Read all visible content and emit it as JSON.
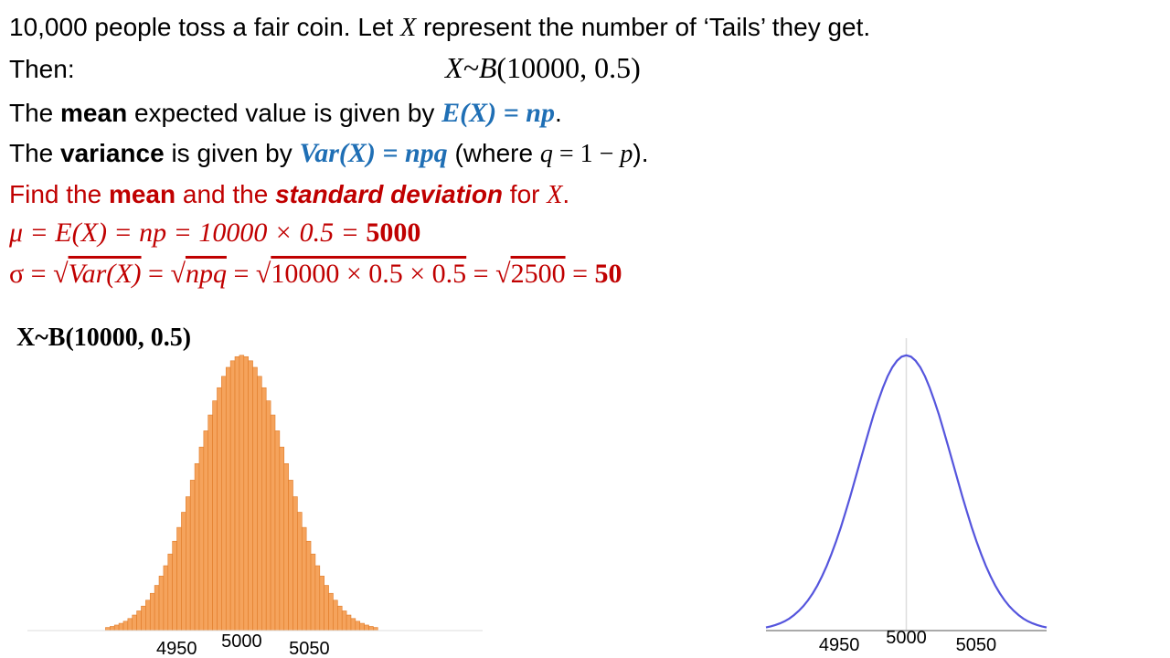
{
  "lines": [
    [
      "10,000 people toss a fair coin.  Let ",
      "X",
      " represent the number of ‘Tails’ they get."
    ],
    [
      "Then:",
      "X~B",
      "(10000, 0.5)"
    ],
    [
      "The ",
      "mean",
      " expected value is given by ",
      "E(X) = np",
      "."
    ],
    [
      "The ",
      "variance",
      " is given by ",
      "Var(X) = npq",
      "  (where ",
      "q",
      " = 1 − ",
      "p",
      ")."
    ],
    [
      "Find the ",
      "mean",
      " and the ",
      "standard deviation",
      " for ",
      "X",
      "."
    ],
    [
      "μ = E(X) = np = 10000 × 0.5 = ",
      "5000"
    ],
    [
      "σ = √",
      "Var(X)",
      " = √",
      "npq",
      " = √",
      "10000 × 0.5 × 0.5",
      " = √",
      "2500",
      " = ",
      "50"
    ]
  ],
  "chart_data": [
    {
      "type": "bar",
      "title": "X~B(10000, 0.5)",
      "color": "#f5a35c",
      "x": [
        4850,
        4855,
        4860,
        4865,
        4870,
        4875,
        4880,
        4885,
        4890,
        4895,
        4900,
        4905,
        4910,
        4915,
        4920,
        4925,
        4930,
        4935,
        4940,
        4945,
        4950,
        4955,
        4960,
        4965,
        4970,
        4975,
        4980,
        4985,
        4990,
        4995,
        5000,
        5005,
        5010,
        5015,
        5020,
        5025,
        5030,
        5035,
        5040,
        5045,
        5050,
        5055,
        5060,
        5065,
        5070,
        5075,
        5080,
        5085,
        5090,
        5095,
        5100,
        5105,
        5110,
        5115,
        5120,
        5125,
        5130,
        5135,
        5140,
        5145,
        5150
      ],
      "values": [
        9e-05,
        0.00012,
        0.00016,
        0.00021,
        0.00027,
        0.00035,
        0.00045,
        0.00057,
        0.00071,
        0.00088,
        0.00108,
        0.00131,
        0.00158,
        0.00188,
        0.00222,
        0.00259,
        0.00299,
        0.00343,
        0.00388,
        0.00436,
        0.00484,
        0.00532,
        0.00579,
        0.00625,
        0.00666,
        0.00704,
        0.00737,
        0.00763,
        0.00782,
        0.00794,
        0.00798,
        0.00794,
        0.00782,
        0.00763,
        0.00737,
        0.00704,
        0.00666,
        0.00625,
        0.00579,
        0.00532,
        0.00484,
        0.00436,
        0.00388,
        0.00343,
        0.00299,
        0.00259,
        0.00222,
        0.00188,
        0.00158,
        0.00131,
        0.00108,
        0.00088,
        0.00071,
        0.00057,
        0.00045,
        0.00035,
        0.00027,
        0.00021,
        0.00016,
        0.00012,
        9e-05
      ],
      "xlim": [
        4760,
        5270
      ],
      "ylim": [
        0,
        0.008
      ],
      "xticks": [
        4950,
        5000,
        5050
      ]
    },
    {
      "type": "line",
      "color": "#5555dd",
      "x": [
        4850,
        4855,
        4860,
        4865,
        4870,
        4875,
        4880,
        4885,
        4890,
        4895,
        4900,
        4905,
        4910,
        4915,
        4920,
        4925,
        4930,
        4935,
        4940,
        4945,
        4950,
        4955,
        4960,
        4965,
        4970,
        4975,
        4980,
        4985,
        4990,
        4995,
        5000,
        5005,
        5010,
        5015,
        5020,
        5025,
        5030,
        5035,
        5040,
        5045,
        5050,
        5055,
        5060,
        5065,
        5070,
        5075,
        5080,
        5085,
        5090,
        5095,
        5100,
        5105,
        5110,
        5115,
        5120,
        5125,
        5130,
        5135,
        5140,
        5145,
        5150
      ],
      "values": [
        9e-05,
        0.00012,
        0.00016,
        0.00021,
        0.00027,
        0.00035,
        0.00045,
        0.00057,
        0.00071,
        0.00088,
        0.00108,
        0.00131,
        0.00158,
        0.00188,
        0.00222,
        0.00259,
        0.00299,
        0.00343,
        0.00388,
        0.00436,
        0.00484,
        0.00532,
        0.00579,
        0.00625,
        0.00666,
        0.00704,
        0.00737,
        0.00763,
        0.00782,
        0.00794,
        0.00798,
        0.00794,
        0.00782,
        0.00763,
        0.00737,
        0.00704,
        0.00666,
        0.00625,
        0.00579,
        0.00532,
        0.00484,
        0.00436,
        0.00388,
        0.00343,
        0.00299,
        0.00259,
        0.00222,
        0.00188,
        0.00158,
        0.00131,
        0.00108,
        0.00088,
        0.00071,
        0.00057,
        0.00045,
        0.00035,
        0.00027,
        0.00021,
        0.00016,
        0.00012,
        9e-05
      ],
      "xlim": [
        4850,
        5150
      ],
      "ylim": [
        0,
        0.008
      ],
      "xticks": [
        4950,
        5000,
        5050
      ]
    }
  ]
}
